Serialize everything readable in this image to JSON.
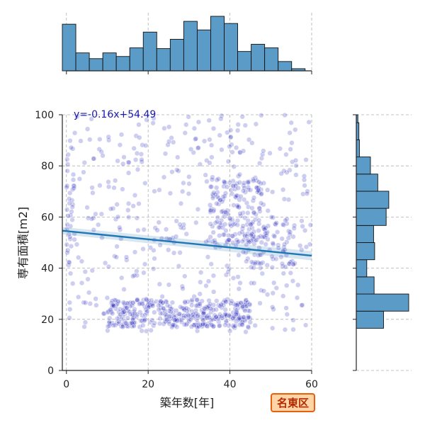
{
  "chart_data": {
    "type": "scatter",
    "xlabel": "築年数[年]",
    "ylabel": "専有面積[m2]",
    "xlim": [
      -1,
      60
    ],
    "ylim": [
      0,
      100
    ],
    "x_ticks": [
      0,
      20,
      40,
      60
    ],
    "y_ticks": [
      0,
      20,
      40,
      60,
      80,
      100
    ],
    "grid": true,
    "regression": {
      "label": "y=-0.16x+54.49",
      "slope": -0.16,
      "intercept": 54.49
    },
    "region_badge": "名東区",
    "point_color": "#2222bb",
    "line_color": "#1f77b4",
    "hist_color": "#5b9bc8",
    "clusters": [
      {
        "x": [
          0,
          60
        ],
        "y": [
          15,
          100
        ],
        "count": 430
      },
      {
        "x": [
          10,
          45
        ],
        "y": [
          17,
          28
        ],
        "count": 360
      },
      {
        "x": [
          35,
          48
        ],
        "y": [
          50,
          75
        ],
        "count": 150
      },
      {
        "x": [
          0,
          2
        ],
        "y": [
          40,
          90
        ],
        "count": 30
      },
      {
        "x": [
          44,
          56
        ],
        "y": [
          40,
          60
        ],
        "count": 80
      }
    ],
    "x_histogram": {
      "bin_edges": [
        -1,
        2.3,
        5.6,
        8.9,
        12.2,
        15.5,
        18.8,
        22.1,
        25.4,
        28.7,
        32.0,
        35.3,
        38.6,
        41.9,
        45.2,
        48.5,
        51.8,
        55.1,
        58.4
      ],
      "counts": [
        65,
        25,
        17,
        25,
        20,
        32,
        54,
        31,
        44,
        69,
        57,
        76,
        66,
        27,
        37,
        32,
        13,
        3
      ]
    },
    "y_histogram": {
      "bin_edges": [
        16.5,
        23.2,
        29.9,
        36.6,
        43.3,
        50.0,
        56.7,
        63.4,
        70.1,
        76.8,
        83.5,
        90.2,
        96.9,
        100
      ],
      "counts": [
        52,
        100,
        34,
        20,
        35,
        33,
        57,
        62,
        41,
        27,
        6,
        5,
        3
      ]
    }
  }
}
